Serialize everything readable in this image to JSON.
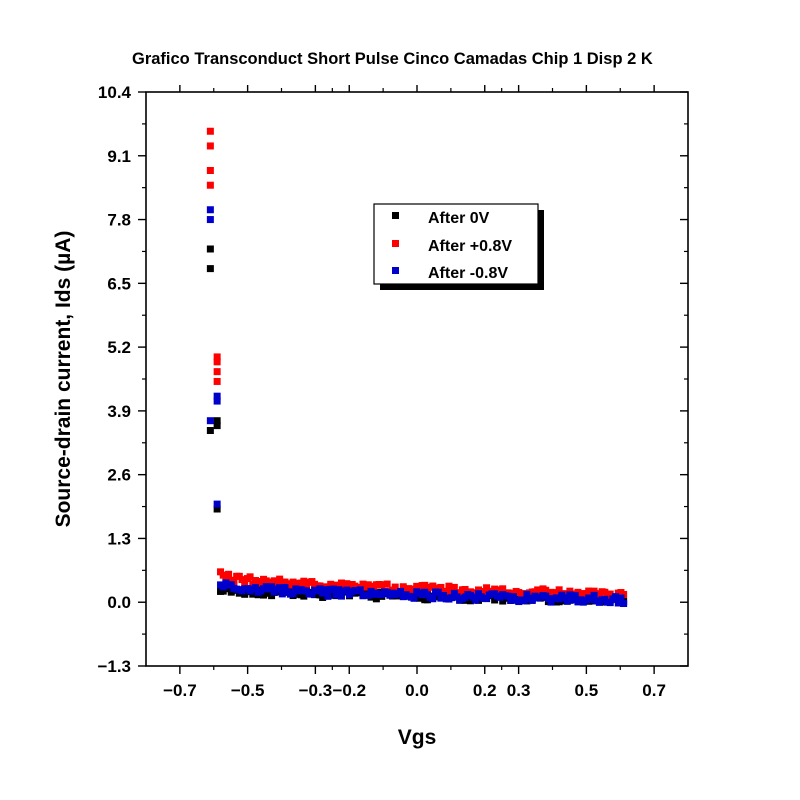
{
  "chart_data": {
    "type": "scatter",
    "title": "Grafico Transconduct Short Pulse Cinco Camadas Chip 1 Disp 2 K",
    "xlabel": "Vgs",
    "ylabel": "Source-drain current, Ids (µA)",
    "xlim": [
      -0.8,
      0.8
    ],
    "ylim": [
      -1.3,
      10.4
    ],
    "xticks": [
      -0.7,
      -0.5,
      -0.3,
      -0.2,
      0.0,
      0.2,
      0.3,
      0.5,
      0.7
    ],
    "xtick_labels": [
      "−0.7",
      "−0.5",
      "−0.3",
      "−0.2",
      "0.0",
      "0.2",
      "0.3",
      "0.5",
      "0.7"
    ],
    "yticks": [
      -1.3,
      0.0,
      1.3,
      2.6,
      3.9,
      5.2,
      6.5,
      7.8,
      9.1,
      10.4
    ],
    "ytick_labels": [
      "−1.3",
      "0.0",
      "1.3",
      "2.6",
      "3.9",
      "5.2",
      "6.5",
      "7.8",
      "9.1",
      "10.4"
    ],
    "legend_position": "upper-center",
    "grid": false,
    "series": [
      {
        "name": "After 0V",
        "color": "#000000",
        "peak_points": [
          [
            -0.61,
            7.2
          ],
          [
            -0.61,
            6.8
          ],
          [
            -0.61,
            3.5
          ],
          [
            -0.59,
            3.6
          ],
          [
            -0.59,
            3.7
          ],
          [
            -0.59,
            1.9
          ]
        ],
        "baseline_start": 0.3,
        "baseline_end": 0.05,
        "baseline_noise": 0.08
      },
      {
        "name": "After +0.8V",
        "color": "#ff0000",
        "peak_points": [
          [
            -0.61,
            9.6
          ],
          [
            -0.61,
            9.3
          ],
          [
            -0.61,
            8.8
          ],
          [
            -0.61,
            8.5
          ],
          [
            -0.59,
            5.0
          ],
          [
            -0.59,
            4.9
          ],
          [
            -0.59,
            4.7
          ],
          [
            -0.59,
            4.5
          ]
        ],
        "baseline_start": 0.55,
        "baseline_end": 0.15,
        "baseline_noise": 0.08
      },
      {
        "name": "After -0.8V",
        "color": "#0000cc",
        "peak_points": [
          [
            -0.61,
            8.0
          ],
          [
            -0.61,
            7.8
          ],
          [
            -0.61,
            3.7
          ],
          [
            -0.59,
            4.1
          ],
          [
            -0.59,
            4.2
          ],
          [
            -0.59,
            2.0
          ]
        ],
        "baseline_start": 0.35,
        "baseline_end": 0.05,
        "baseline_noise": 0.08
      }
    ],
    "baseline_x_range": [
      -0.58,
      0.61
    ]
  }
}
